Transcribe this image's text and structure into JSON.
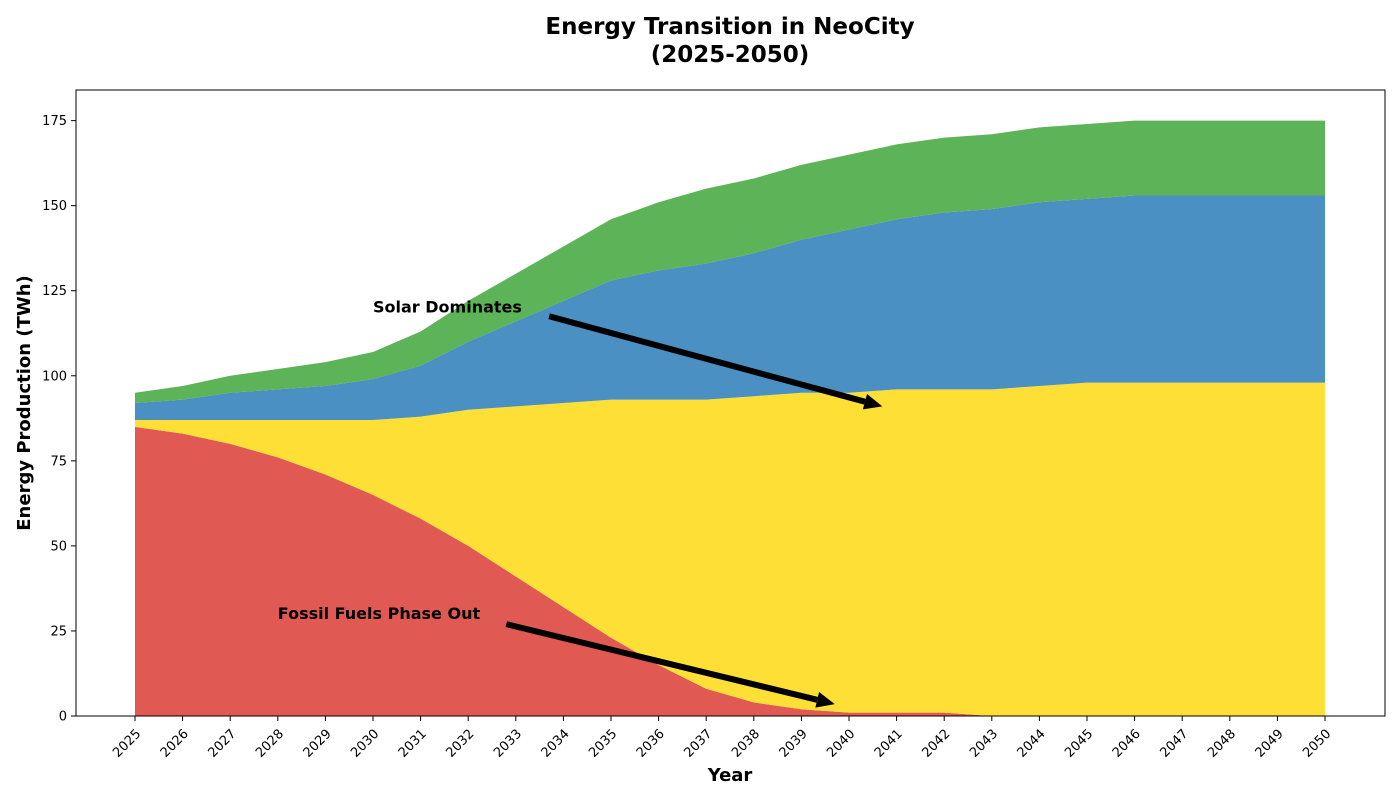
{
  "chart_data": {
    "type": "area",
    "stacked": true,
    "title_line1": "Energy Transition in NeoCity",
    "title_line2": "(2025-2050)",
    "xlabel": "Year",
    "ylabel": "Energy Production (TWh)",
    "ylim": [
      0,
      184
    ],
    "yticks": [
      0,
      25,
      50,
      75,
      100,
      125,
      150,
      175
    ],
    "x": [
      2025,
      2026,
      2027,
      2028,
      2029,
      2030,
      2031,
      2032,
      2033,
      2034,
      2035,
      2036,
      2037,
      2038,
      2039,
      2040,
      2041,
      2042,
      2043,
      2044,
      2045,
      2046,
      2047,
      2048,
      2049,
      2050
    ],
    "grid": false,
    "legend": "none",
    "series": [
      {
        "color": "#e05952",
        "values": [
          85,
          83,
          80,
          76,
          71,
          65,
          58,
          50,
          41,
          32,
          23,
          15,
          8,
          4,
          2,
          1,
          1,
          1,
          0,
          0,
          0,
          0,
          0,
          0,
          0,
          0
        ]
      },
      {
        "color": "#fedf35",
        "values": [
          2,
          4,
          7,
          11,
          16,
          22,
          30,
          40,
          50,
          60,
          70,
          78,
          85,
          90,
          93,
          94,
          95,
          95,
          96,
          97,
          98,
          98,
          98,
          98,
          98,
          98
        ]
      },
      {
        "color": "#4a90c2",
        "values": [
          5,
          6,
          8,
          9,
          10,
          12,
          15,
          20,
          25,
          30,
          35,
          38,
          40,
          42,
          45,
          48,
          50,
          52,
          53,
          54,
          54,
          55,
          55,
          55,
          55,
          55
        ]
      },
      {
        "color": "#5cb358",
        "values": [
          3,
          4,
          5,
          6,
          7,
          8,
          10,
          12,
          14,
          16,
          18,
          20,
          22,
          22,
          22,
          22,
          22,
          22,
          22,
          22,
          22,
          22,
          22,
          22,
          22,
          22
        ]
      }
    ],
    "annotations": [
      {
        "text": "Solar Dominates",
        "text_x": 2030,
        "text_y": 120,
        "arrow_from": [
          2033.7,
          117.5
        ],
        "arrow_to": [
          2040.7,
          91
        ]
      },
      {
        "text": "Fossil Fuels Phase Out",
        "text_x": 2028,
        "text_y": 30,
        "arrow_from": [
          2032.8,
          27
        ],
        "arrow_to": [
          2039.7,
          3.5
        ]
      }
    ]
  }
}
